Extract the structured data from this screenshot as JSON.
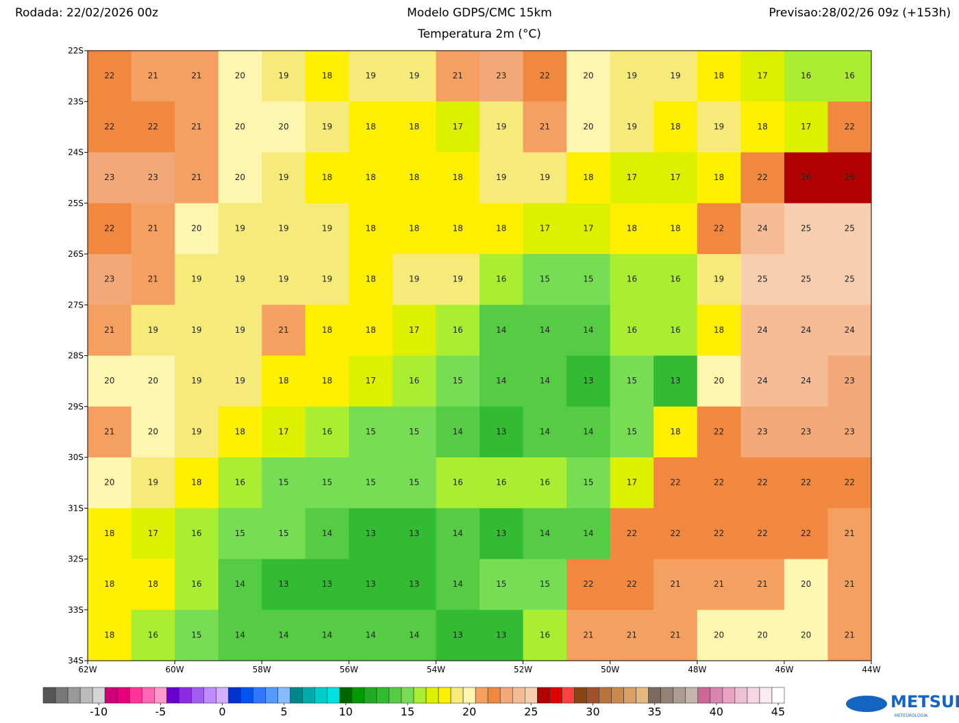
{
  "header": {
    "left": "Rodada: 22/02/2026 00z",
    "center": "Modelo GDPS/CMC 15km",
    "right": "Previsao:28/02/26 09z (+153h)",
    "subtitle": "Temperatura 2m (°C)"
  },
  "map": {
    "lonlim": [
      -62,
      -44
    ],
    "latlim": [
      -22,
      -34
    ],
    "lonticks": [
      {
        "value": -62,
        "label": "62W"
      },
      {
        "value": -60,
        "label": "60W"
      },
      {
        "value": -58,
        "label": "58W"
      },
      {
        "value": -56,
        "label": "56W"
      },
      {
        "value": -54,
        "label": "54W"
      },
      {
        "value": -52,
        "label": "52W"
      },
      {
        "value": -50,
        "label": "50W"
      },
      {
        "value": -48,
        "label": "48W"
      },
      {
        "value": -46,
        "label": "46W"
      },
      {
        "value": -44,
        "label": "44W"
      }
    ],
    "latticks": [
      {
        "value": -22,
        "label": "22S"
      },
      {
        "value": -23,
        "label": "23S"
      },
      {
        "value": -24,
        "label": "24S"
      },
      {
        "value": -25,
        "label": "25S"
      },
      {
        "value": -26,
        "label": "26S"
      },
      {
        "value": -27,
        "label": "27S"
      },
      {
        "value": -28,
        "label": "28S"
      },
      {
        "value": -29,
        "label": "29S"
      },
      {
        "value": -30,
        "label": "30S"
      },
      {
        "value": -31,
        "label": "31S"
      },
      {
        "value": -32,
        "label": "32S"
      },
      {
        "value": -33,
        "label": "33S"
      },
      {
        "value": -34,
        "label": "34S"
      }
    ],
    "temperature": [
      [
        22,
        21,
        21,
        20,
        19,
        18,
        19,
        19,
        21,
        23,
        22,
        20,
        19,
        19,
        18,
        17,
        16,
        16
      ],
      [
        22,
        22,
        21,
        20,
        20,
        19,
        18,
        18,
        17,
        19,
        21,
        20,
        19,
        18,
        19,
        18,
        17,
        22
      ],
      [
        23,
        23,
        21,
        20,
        19,
        18,
        18,
        18,
        18,
        19,
        19,
        18,
        17,
        17,
        18,
        22,
        26,
        26
      ],
      [
        22,
        21,
        20,
        19,
        19,
        19,
        18,
        18,
        18,
        18,
        17,
        17,
        18,
        18,
        22,
        24,
        25,
        25
      ],
      [
        23,
        21,
        19,
        19,
        19,
        19,
        18,
        19,
        19,
        16,
        15,
        15,
        16,
        16,
        19,
        25,
        25,
        25
      ],
      [
        21,
        19,
        19,
        19,
        21,
        18,
        18,
        17,
        16,
        14,
        14,
        14,
        16,
        16,
        18,
        24,
        24,
        24
      ],
      [
        20,
        20,
        19,
        19,
        18,
        18,
        17,
        16,
        15,
        14,
        14,
        13,
        15,
        13,
        20,
        24,
        24,
        23
      ],
      [
        21,
        20,
        19,
        18,
        17,
        16,
        15,
        15,
        14,
        13,
        14,
        14,
        15,
        18,
        22,
        23,
        23,
        23
      ],
      [
        20,
        19,
        18,
        16,
        15,
        15,
        15,
        15,
        16,
        16,
        16,
        15,
        17,
        22,
        22,
        22,
        22,
        22
      ],
      [
        18,
        17,
        16,
        15,
        15,
        14,
        13,
        13,
        14,
        13,
        14,
        14,
        22,
        22,
        22,
        22,
        22,
        21
      ],
      [
        18,
        18,
        16,
        14,
        13,
        13,
        13,
        13,
        14,
        15,
        15,
        22,
        22,
        21,
        21,
        21,
        20,
        21
      ],
      [
        18,
        16,
        15,
        14,
        14,
        14,
        14,
        14,
        13,
        13,
        16,
        21,
        21,
        21,
        20,
        20,
        20,
        21
      ]
    ]
  },
  "colorbar": {
    "lim": [
      -14.5,
      45.5
    ],
    "first": -14,
    "colors": [
      "#555555",
      "#777777",
      "#999999",
      "#bbbbbb",
      "#d4d4d4",
      "#cc0077",
      "#e6007e",
      "#ff3399",
      "#ff66b3",
      "#ff99cc",
      "#6600cc",
      "#8a2be2",
      "#a35cf0",
      "#c08cff",
      "#d0b0ff",
      "#0033cc",
      "#0055ee",
      "#3377ff",
      "#5599ff",
      "#88bbff",
      "#008888",
      "#00aaaa",
      "#00cccc",
      "#00e0e0",
      "#006600",
      "#009900",
      "#22aa22",
      "#33bb33",
      "#55cc44",
      "#77dd55",
      "#aaee33",
      "#ddf000",
      "#fff000",
      "#f5ea7a",
      "#fff6b0",
      "#f5a060",
      "#f08840",
      "#f3a878",
      "#f6bc96",
      "#f8ceb0",
      "#b00000",
      "#e00000",
      "#ff4040",
      "#8b4513",
      "#a0522d",
      "#b8743c",
      "#c98a4b",
      "#d9a066",
      "#e6b880",
      "#7a6a60",
      "#958378",
      "#ad9c92",
      "#c5b5ac",
      "#cc6699",
      "#d985ad",
      "#e6a3c2",
      "#efbfd6",
      "#f5d6e5",
      "#fbeaf2",
      "#ffffff"
    ],
    "ticks": [
      -10,
      -5,
      0,
      5,
      10,
      15,
      20,
      25,
      30,
      35,
      40,
      45
    ]
  },
  "logo": {
    "name": "METSUL",
    "tagline": "METEOROLOGIA"
  }
}
